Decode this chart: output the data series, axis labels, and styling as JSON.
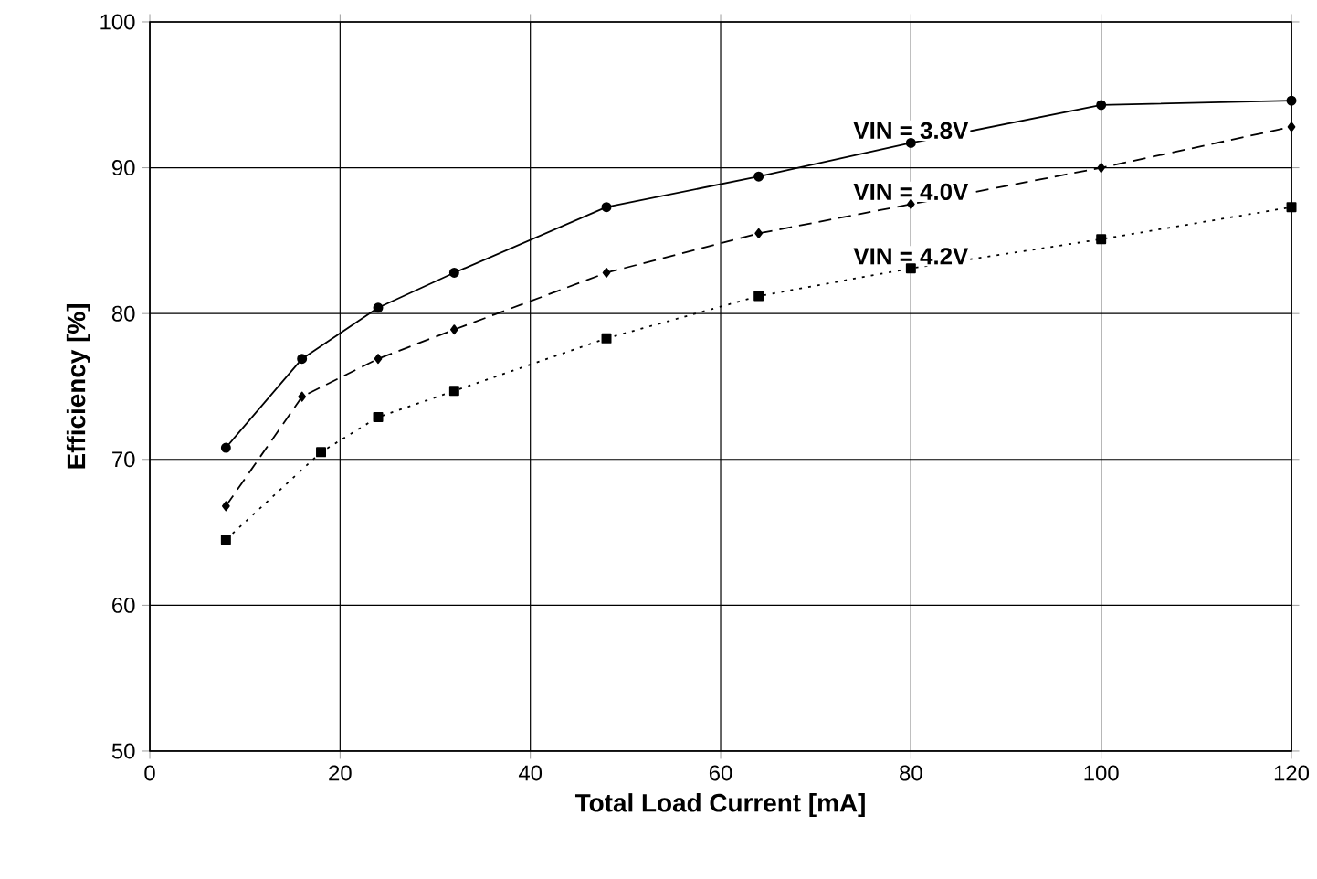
{
  "chart_data": {
    "type": "line",
    "xlabel": "Total Load Current [mA]",
    "ylabel": "Efficiency [%]",
    "xlim": [
      0,
      120
    ],
    "ylim": [
      50,
      100
    ],
    "xticks": [
      0,
      20,
      40,
      60,
      80,
      100,
      120
    ],
    "yticks": [
      50,
      60,
      70,
      80,
      90,
      100
    ],
    "grid": true,
    "series": [
      {
        "name": "VIN = 3.8V",
        "color": "#000000",
        "marker": "circle",
        "line_style": "solid",
        "x": [
          8,
          16,
          24,
          32,
          48,
          64,
          80,
          100,
          120
        ],
        "values": [
          70.8,
          76.9,
          80.4,
          82.8,
          87.3,
          89.4,
          91.7,
          94.3,
          94.6
        ]
      },
      {
        "name": "VIN = 4.0V",
        "color": "#000000",
        "marker": "diamond",
        "line_style": "dashed",
        "x": [
          8,
          16,
          24,
          32,
          48,
          64,
          80,
          100,
          120
        ],
        "values": [
          66.8,
          74.3,
          76.9,
          78.9,
          82.8,
          85.5,
          87.5,
          90.0,
          92.8
        ]
      },
      {
        "name": "VIN = 4.2V",
        "color": "#000000",
        "marker": "square",
        "line_style": "dotted",
        "x": [
          8,
          18,
          24,
          32,
          48,
          64,
          80,
          100,
          120
        ],
        "values": [
          64.5,
          70.5,
          72.9,
          74.7,
          78.3,
          81.2,
          83.1,
          85.1,
          87.3
        ]
      }
    ]
  }
}
